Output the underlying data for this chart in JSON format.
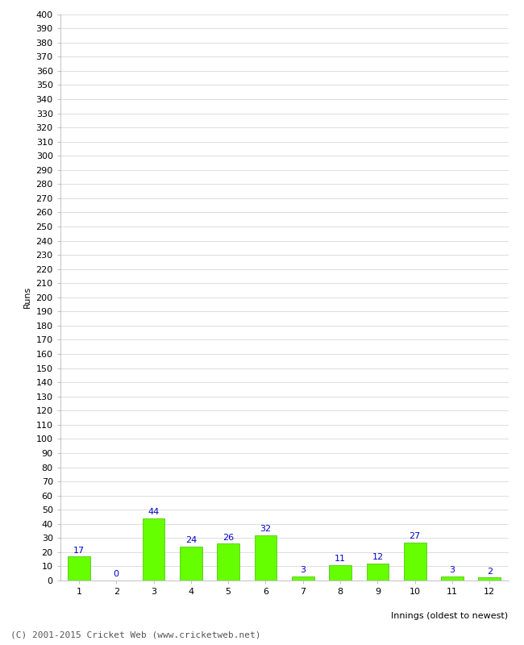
{
  "innings": [
    1,
    2,
    3,
    4,
    5,
    6,
    7,
    8,
    9,
    10,
    11,
    12
  ],
  "runs": [
    17,
    0,
    44,
    24,
    26,
    32,
    3,
    11,
    12,
    27,
    3,
    2
  ],
  "bar_color": "#66ff00",
  "bar_edge_color": "#44bb00",
  "label_color": "#0000cc",
  "xlabel": "Innings (oldest to newest)",
  "ylabel": "Runs",
  "footer": "(C) 2001-2015 Cricket Web (www.cricketweb.net)",
  "ylim_min": 0,
  "ylim_max": 400,
  "ytick_step": 10,
  "background_color": "#ffffff",
  "grid_color": "#dddddd",
  "label_fontsize": 8,
  "tick_fontsize": 8,
  "footer_fontsize": 8,
  "ylabel_fontsize": 8,
  "xlabel_fontsize": 8
}
